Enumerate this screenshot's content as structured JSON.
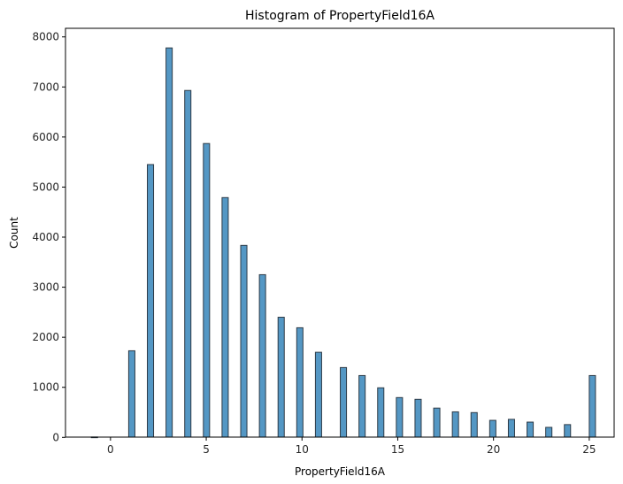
{
  "chart_data": {
    "type": "bar",
    "subtype": "histogram",
    "title": "Histogram of PropertyField16A",
    "xlabel": "PropertyField16A",
    "ylabel": "Count",
    "xlim": [
      -2.35,
      26.3
    ],
    "ylim": [
      0,
      8200
    ],
    "xticks": [
      0,
      5,
      10,
      15,
      20,
      25
    ],
    "yticks": [
      0,
      1000,
      2000,
      3000,
      4000,
      5000,
      6000,
      7000,
      8000
    ],
    "grid": false,
    "legend": null,
    "bin_width": 0.325,
    "bar_color": "#5497c4",
    "bar_edge_color": "#2e3b47",
    "categories": [
      -1,
      1,
      2,
      3,
      4,
      5,
      6,
      7,
      8,
      9,
      10,
      11,
      12,
      13,
      14,
      15,
      16,
      17,
      18,
      19,
      20,
      21,
      22,
      23,
      24,
      25
    ],
    "values": [
      8,
      1730,
      5450,
      7780,
      6930,
      5870,
      4790,
      3835,
      3250,
      2400,
      2190,
      1700,
      1395,
      1235,
      990,
      795,
      760,
      585,
      510,
      495,
      340,
      360,
      305,
      200,
      255,
      1235
    ]
  }
}
